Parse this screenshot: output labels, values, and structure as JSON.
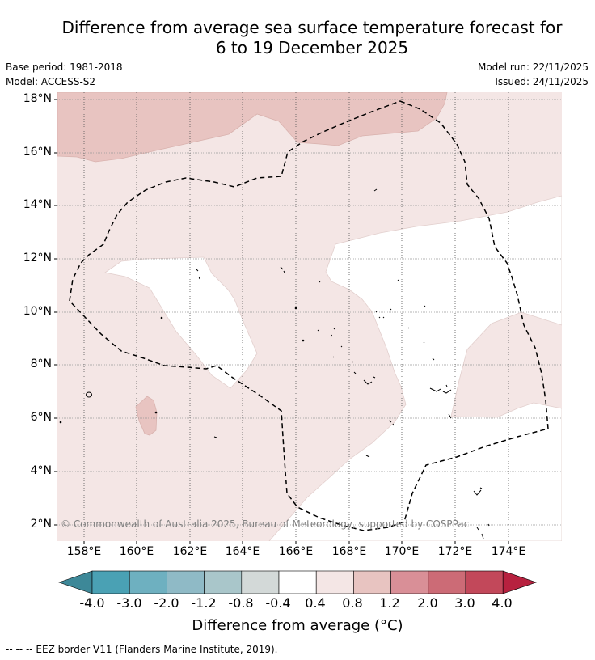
{
  "title": {
    "line1": "Difference from average sea surface temperature forecast for",
    "line2": "6 to 19 December 2025"
  },
  "meta": {
    "base_period": "Base period: 1981-2018",
    "model": "Model: ACCESS-S2",
    "model_run": "Model run: 22/11/2025",
    "issued": "Issued: 24/11/2025"
  },
  "map": {
    "lat_labels": [
      "18°N",
      "16°N",
      "14°N",
      "12°N",
      "10°N",
      "8°N",
      "6°N",
      "4°N",
      "2°N"
    ],
    "lon_labels": [
      "158°E",
      "160°E",
      "162°E",
      "164°E",
      "166°E",
      "168°E",
      "170°E",
      "172°E",
      "174°E"
    ],
    "copyright": "© Commonwealth of Australia 2025, Bureau of Meteorology, supported by COSPPac"
  },
  "colorbar": {
    "tick_labels": [
      "-4.0",
      "-3.0",
      "-2.0",
      "-1.2",
      "-0.8",
      "-0.4",
      "0.4",
      "0.8",
      "1.2",
      "2.0",
      "3.0",
      "4.0"
    ],
    "colors": [
      "#3d8898",
      "#4aa1b4",
      "#6eb0c0",
      "#8fbac6",
      "#a9c6ca",
      "#d3d9d8",
      "#ffffff",
      "#f4e6e5",
      "#e8c4c1",
      "#d98f97",
      "#cc6b76",
      "#c2485a",
      "#b7213f"
    ],
    "title": "Difference from average (°C)"
  },
  "footnote": "--  --  -- EEZ border V11 (Flanders Marine Institute, 2019)."
}
